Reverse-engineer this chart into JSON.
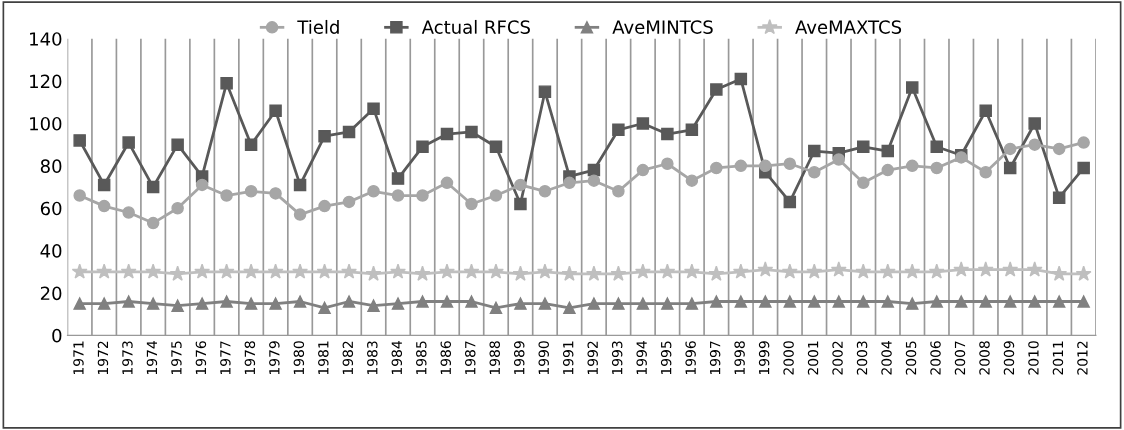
{
  "chart_data": {
    "type": "line",
    "categories": [
      "1971",
      "1972",
      "1973",
      "1974",
      "1975",
      "1976",
      "1977",
      "1978",
      "1979",
      "1980",
      "1981",
      "1982",
      "1983",
      "1984",
      "1985",
      "1986",
      "1987",
      "1988",
      "1989",
      "1990",
      "1991",
      "1992",
      "1993",
      "1994",
      "1995",
      "1996",
      "1997",
      "1998",
      "1999",
      "2000",
      "2001",
      "2002",
      "2003",
      "2004",
      "2005",
      "2006",
      "2007",
      "2008",
      "2009",
      "2010",
      "2011",
      "2012"
    ],
    "series": [
      {
        "name": "Tield",
        "color": "#a6a6a6",
        "marker": "circle",
        "values": [
          66,
          61,
          58,
          53,
          60,
          71,
          66,
          68,
          67,
          57,
          61,
          63,
          68,
          66,
          66,
          72,
          62,
          66,
          71,
          68,
          72,
          73,
          68,
          78,
          81,
          73,
          79,
          80,
          80,
          81,
          77,
          83,
          72,
          78,
          80,
          79,
          84,
          77,
          88,
          90,
          88,
          91
        ]
      },
      {
        "name": "Actual RFCS",
        "color": "#595959",
        "marker": "square",
        "values": [
          92,
          71,
          91,
          70,
          90,
          75,
          119,
          90,
          106,
          71,
          94,
          96,
          107,
          74,
          89,
          95,
          96,
          89,
          62,
          115,
          75,
          78,
          97,
          100,
          95,
          97,
          116,
          121,
          77,
          63,
          87,
          86,
          89,
          87,
          117,
          89,
          85,
          106,
          79,
          100,
          65,
          79
        ]
      },
      {
        "name": "AveMINTCS",
        "color": "#808080",
        "marker": "triangle",
        "values": [
          15,
          15,
          16,
          15,
          14,
          15,
          16,
          15,
          15,
          16,
          13,
          16,
          14,
          15,
          16,
          16,
          16,
          13,
          15,
          15,
          13,
          15,
          15,
          15,
          15,
          15,
          16,
          16,
          16,
          16,
          16,
          16,
          16,
          16,
          15,
          16,
          16,
          16,
          16,
          16,
          16,
          16
        ]
      },
      {
        "name": "AveMAXTCS",
        "color": "#bfbfbf",
        "marker": "star",
        "values": [
          30,
          30,
          30,
          30,
          29,
          30,
          30,
          30,
          30,
          30,
          30,
          30,
          29,
          30,
          29,
          30,
          30,
          30,
          29,
          30,
          29,
          29,
          29,
          30,
          30,
          30,
          29,
          30,
          31,
          30,
          30,
          31,
          30,
          30,
          30,
          30,
          31,
          31,
          31,
          31,
          29,
          29
        ]
      }
    ],
    "ylim": [
      0,
      140
    ],
    "yticks": [
      0,
      20,
      40,
      60,
      80,
      100,
      120,
      140
    ],
    "grid": "x",
    "legend": "top",
    "line_style": "solid"
  }
}
